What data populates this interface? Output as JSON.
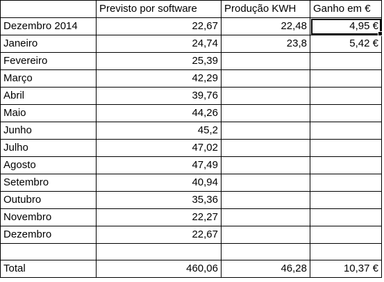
{
  "headers": [
    "",
    "Previsto por software",
    "Produção KWH",
    "Ganho em €"
  ],
  "rows": [
    {
      "month": "Dezembro 2014",
      "previsto": "22,67",
      "producao": "22,48",
      "ganho": "4,95 €"
    },
    {
      "month": "Janeiro",
      "previsto": "24,74",
      "producao": "23,8",
      "ganho": "5,42 €"
    },
    {
      "month": "Fevereiro",
      "previsto": "25,39",
      "producao": "",
      "ganho": ""
    },
    {
      "month": "Março",
      "previsto": "42,29",
      "producao": "",
      "ganho": ""
    },
    {
      "month": "Abril",
      "previsto": "39,76",
      "producao": "",
      "ganho": ""
    },
    {
      "month": "Maio",
      "previsto": "44,26",
      "producao": "",
      "ganho": ""
    },
    {
      "month": "Junho",
      "previsto": "45,2",
      "producao": "",
      "ganho": ""
    },
    {
      "month": "Julho",
      "previsto": "47,02",
      "producao": "",
      "ganho": ""
    },
    {
      "month": "Agosto",
      "previsto": "47,49",
      "producao": "",
      "ganho": ""
    },
    {
      "month": "Setembro",
      "previsto": "40,94",
      "producao": "",
      "ganho": ""
    },
    {
      "month": "Outubro",
      "previsto": "35,36",
      "producao": "",
      "ganho": ""
    },
    {
      "month": "Novembro",
      "previsto": "22,27",
      "producao": "",
      "ganho": ""
    },
    {
      "month": "Dezembro",
      "previsto": "22,67",
      "producao": "",
      "ganho": ""
    },
    {
      "month": "",
      "previsto": "",
      "producao": "",
      "ganho": ""
    }
  ],
  "total": {
    "month": "Total",
    "previsto": "460,06",
    "producao": "46,28",
    "ganho": "10,37 €"
  },
  "selected_cell": "rows.0.ganho"
}
